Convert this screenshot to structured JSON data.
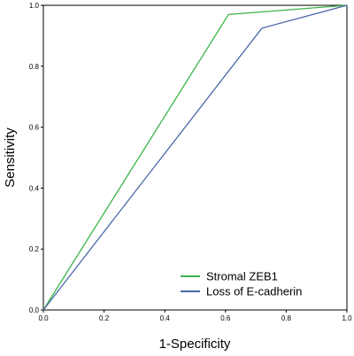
{
  "chart_data": {
    "type": "line",
    "xlabel": "1-Specificity",
    "ylabel": "Sensitivity",
    "xlim": [
      0,
      1
    ],
    "ylim": [
      0,
      1
    ],
    "xticks": [
      "0.0",
      "0.2",
      "0.4",
      "0.6",
      "0.8",
      "1.0"
    ],
    "yticks": [
      "0.0",
      "0.2",
      "0.4",
      "0.6",
      "0.8",
      "1.0"
    ],
    "grid": false,
    "legend_position": "bottom-right",
    "series": [
      {
        "name": "Stromal ZEB1",
        "color": "#3cb54a",
        "points": [
          [
            0,
            0
          ],
          [
            0.61,
            0.97
          ],
          [
            1,
            1
          ]
        ]
      },
      {
        "name": "Loss of E-cadherin",
        "color": "#4a67a8",
        "points": [
          [
            0,
            0
          ],
          [
            0.72,
            0.925
          ],
          [
            1,
            1
          ]
        ]
      }
    ]
  }
}
